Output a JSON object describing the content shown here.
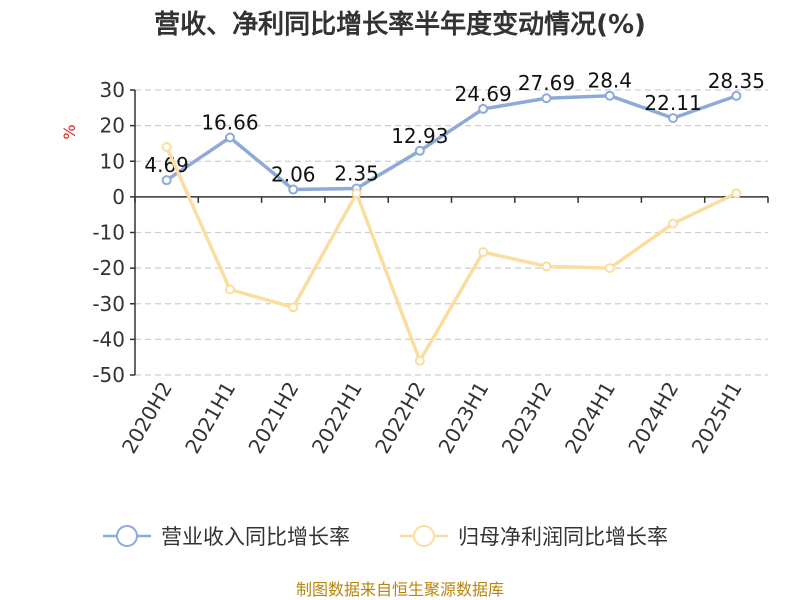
{
  "chart_data": {
    "type": "line",
    "title": "营收、净利同比增长率半年度变动情况(%)",
    "ylabel": "%",
    "xlabel": "",
    "ylim": [
      -50,
      30
    ],
    "yticks": [
      30,
      20,
      10,
      0,
      -10,
      -20,
      -30,
      -40,
      -50
    ],
    "categories": [
      "2020H2",
      "2021H1",
      "2021H2",
      "2022H1",
      "2022H2",
      "2023H1",
      "2023H2",
      "2024H1",
      "2024H2",
      "2025H1"
    ],
    "grid": true,
    "legend_position": "bottom",
    "series": [
      {
        "name": "营业收入同比增长率",
        "color": "#8eaad8",
        "values": [
          4.69,
          16.66,
          2.06,
          2.35,
          12.93,
          24.69,
          27.69,
          28.4,
          22.11,
          28.35
        ],
        "labels": [
          "4.69",
          "16.66",
          "2.06",
          "2.35",
          "12.93",
          "24.69",
          "27.69",
          "28.4",
          "22.11",
          "28.35"
        ]
      },
      {
        "name": "归母净利润同比增长率",
        "color": "#fbdda0",
        "values": [
          14,
          -26,
          -31,
          1,
          -46,
          -15.5,
          -19.5,
          -20,
          -7.5,
          1
        ]
      }
    ]
  },
  "footer": {
    "source": "制图数据来自恒生聚源数据库"
  }
}
